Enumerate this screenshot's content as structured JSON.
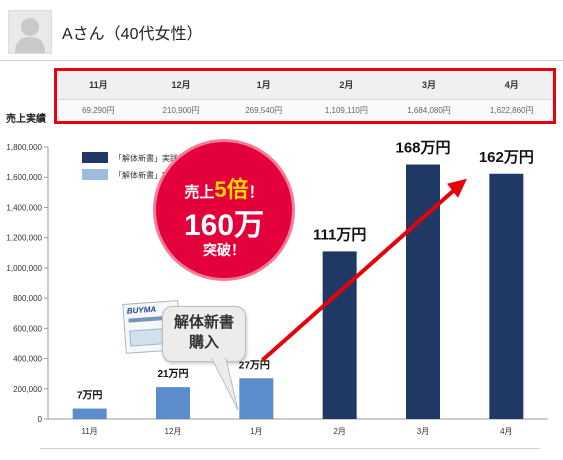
{
  "header": {
    "name": "Aさん（40代女性）"
  },
  "sales_table": {
    "row_label": "売上実績",
    "months": [
      "11月",
      "12月",
      "1月",
      "2月",
      "3月",
      "4月"
    ],
    "values": [
      "69,290円",
      "210,900円",
      "269,540円",
      "1,109,110円",
      "1,684,080円",
      "1,622,860円"
    ]
  },
  "chart_data": {
    "type": "bar",
    "categories": [
      "11月",
      "12月",
      "1月",
      "2月",
      "3月",
      "4月"
    ],
    "values": [
      69290,
      210900,
      269540,
      1109110,
      1684080,
      1622860
    ],
    "ylim": [
      0,
      1800000
    ],
    "yticks": [
      "0",
      "200,000",
      "400,000",
      "600,000",
      "800,000",
      "1,000,000",
      "1,200,000",
      "1,400,000",
      "1,600,000",
      "1,800,000"
    ],
    "bar_labels": [
      "7万円",
      "21万円",
      "27万円",
      "111万円",
      "168万円",
      "162万円"
    ],
    "legend": [
      "「解体新書」実践前",
      "「解体新書」実践後"
    ],
    "colors": {
      "before": "#5b8ccb",
      "after": "#1f3864",
      "legend_before": "#9ebbe0",
      "arrow": "#e8000b"
    },
    "grid": false
  },
  "callouts": {
    "burst_prefix": "売上",
    "burst_emph": "5倍",
    "burst_suffix": "！",
    "burst_main": "160万",
    "burst_end": "突破！",
    "book_title": "BUYMA",
    "bubble": "解体新書\n購入"
  }
}
